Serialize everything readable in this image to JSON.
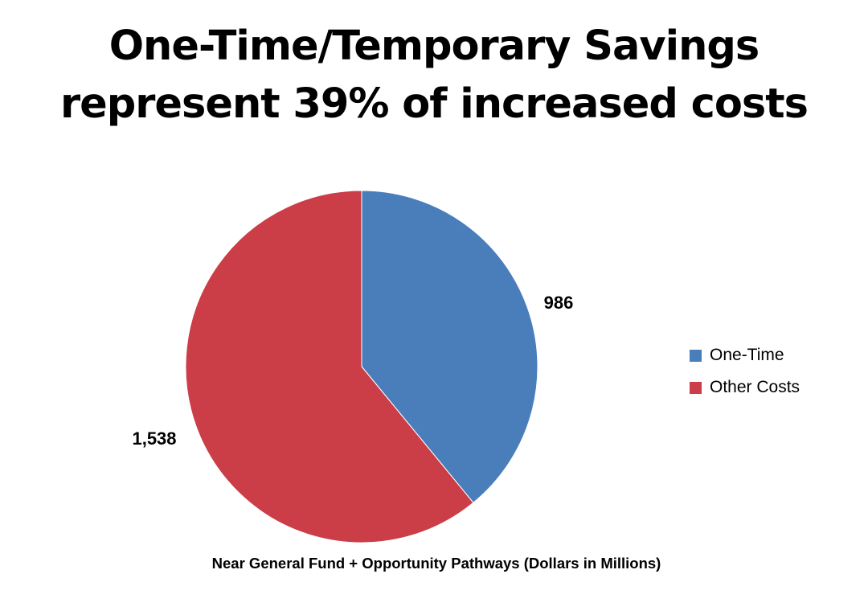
{
  "slide": {
    "title_line1": "One-Time/Temporary Savings",
    "title_line2": "represent 39% of increased costs"
  },
  "chart_data": {
    "type": "pie",
    "title": "",
    "xlabel": "Near General Fund + Opportunity Pathways (Dollars in Millions)",
    "categories": [
      "One-Time",
      "Other Costs"
    ],
    "values": [
      986,
      1538
    ],
    "data_labels": [
      "986",
      "1,538"
    ],
    "colors": [
      "#4a7ebb",
      "#cb3d47"
    ],
    "legend": "right"
  }
}
